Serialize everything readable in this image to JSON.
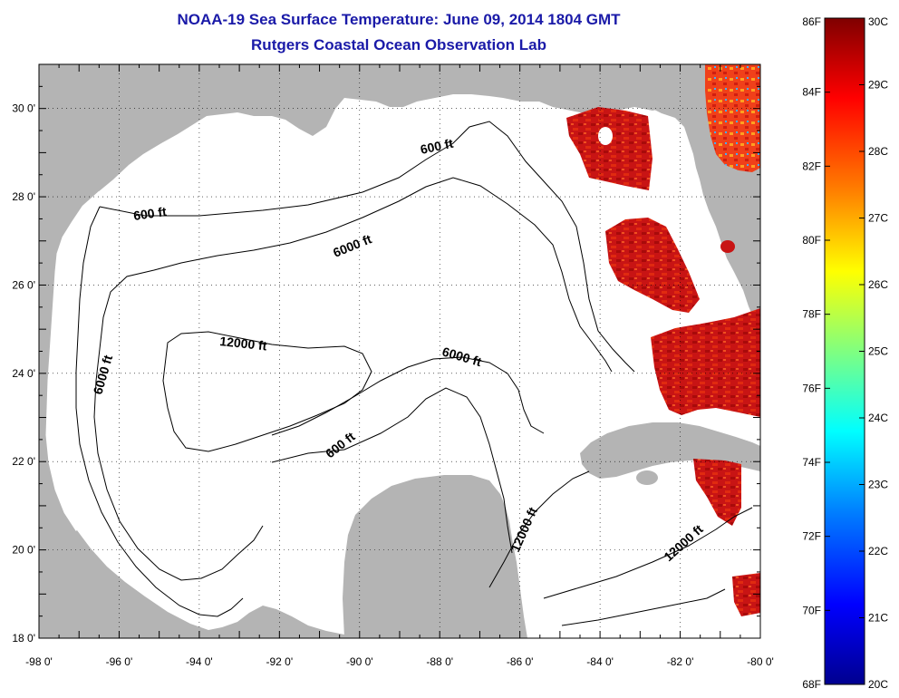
{
  "title": {
    "line1": "NOAA-19 Sea Surface Temperature:  June 09, 2014 1804 GMT",
    "line2": "Rutgers Coastal Ocean Observation Lab"
  },
  "map": {
    "lon_min": -98,
    "lon_max": -80,
    "lat_min": 18,
    "lat_max": 31,
    "lon_ticks": [
      "-98 0'",
      "-96 0'",
      "-94 0'",
      "-92 0'",
      "-90 0'",
      "-88 0'",
      "-86 0'",
      "-84 0'",
      "-82 0'",
      "-80 0'"
    ],
    "lat_ticks": [
      "18 0'",
      "20 0'",
      "22 0'",
      "24 0'",
      "26 0'",
      "28 0'",
      "30 0'"
    ],
    "land_color": "#b4b4b4",
    "ocean_color": "#ffffff"
  },
  "contour_labels": [
    {
      "id": "c600-north",
      "text": "600 ft"
    },
    {
      "id": "c600-west",
      "text": "600 ft"
    },
    {
      "id": "c6000-north",
      "text": "6000 ft"
    },
    {
      "id": "c6000-west",
      "text": "6000 ft"
    },
    {
      "id": "c12000-center",
      "text": "12000 ft"
    },
    {
      "id": "c6000-east",
      "text": "6000 ft"
    },
    {
      "id": "c600-south",
      "text": "600 ft"
    },
    {
      "id": "c12000-yucatan",
      "text": "12000 ft"
    },
    {
      "id": "c12000-cayman",
      "text": "12000 ft"
    }
  ],
  "colorbar": {
    "f_labels": [
      "86F",
      "84F",
      "82F",
      "80F",
      "78F",
      "76F",
      "74F",
      "72F",
      "70F",
      "68F"
    ],
    "c_labels": [
      "30C",
      "29C",
      "28C",
      "27C",
      "26C",
      "25C",
      "24C",
      "23C",
      "22C",
      "21C",
      "20C"
    ],
    "gradient": [
      "#7f0000",
      "#ff0000",
      "#ff8000",
      "#ffff00",
      "#80ff80",
      "#00ffff",
      "#0080ff",
      "#0000ff",
      "#00008f"
    ]
  }
}
